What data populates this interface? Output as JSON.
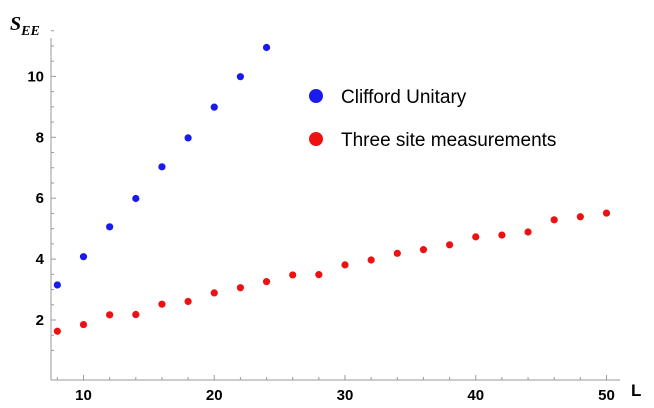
{
  "chart_data": {
    "type": "scatter",
    "xlabel": "L",
    "ylabel": {
      "main": "S",
      "sub": "EE"
    },
    "xlim": [
      7.5,
      52
    ],
    "ylim": [
      0.6,
      11.6
    ],
    "xticks": [
      10,
      20,
      30,
      40,
      50
    ],
    "yticks": [
      2,
      4,
      6,
      8,
      10
    ],
    "legend_position": "top-right",
    "series": [
      {
        "name": "Clifford Unitary",
        "color": "#1a1aee",
        "points": [
          [
            8,
            3.15
          ],
          [
            10,
            4.08
          ],
          [
            12,
            5.06
          ],
          [
            14,
            5.99
          ],
          [
            16,
            7.03
          ],
          [
            18,
            7.98
          ],
          [
            20,
            8.99
          ],
          [
            22,
            9.99
          ],
          [
            24,
            10.95
          ]
        ]
      },
      {
        "name": "Three site measurements",
        "color": "#ee1111",
        "points": [
          [
            8,
            1.63
          ],
          [
            10,
            1.85
          ],
          [
            12,
            2.17
          ],
          [
            14,
            2.18
          ],
          [
            16,
            2.52
          ],
          [
            18,
            2.61
          ],
          [
            20,
            2.89
          ],
          [
            22,
            3.06
          ],
          [
            24,
            3.26
          ],
          [
            26,
            3.48
          ],
          [
            28,
            3.49
          ],
          [
            30,
            3.81
          ],
          [
            32,
            3.97
          ],
          [
            34,
            4.19
          ],
          [
            36,
            4.31
          ],
          [
            38,
            4.47
          ],
          [
            40,
            4.73
          ],
          [
            42,
            4.79
          ],
          [
            44,
            4.89
          ],
          [
            46,
            5.29
          ],
          [
            48,
            5.39
          ],
          [
            50,
            5.51
          ]
        ]
      }
    ]
  }
}
